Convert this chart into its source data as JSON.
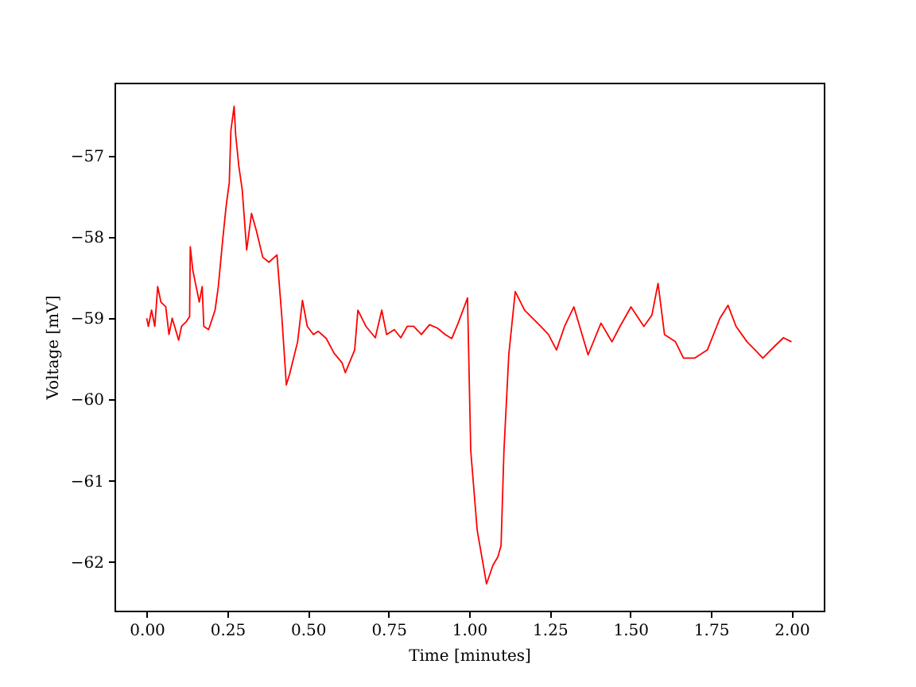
{
  "chart_data": {
    "type": "line",
    "xlabel": "Time [minutes]",
    "ylabel": "Voltage [mV]",
    "grid": false,
    "marker": "none",
    "line_style": "solid",
    "xlim": [
      -0.1,
      2.1
    ],
    "ylim": [
      -62.6,
      -56.1
    ],
    "xticks": [
      {
        "value": 0,
        "label": "0.00"
      },
      {
        "value": 0.25,
        "label": "0.25"
      },
      {
        "value": 0.5,
        "label": "0.50"
      },
      {
        "value": 0.75,
        "label": "0.75"
      },
      {
        "value": 1,
        "label": "1.00"
      },
      {
        "value": 1.25,
        "label": "1.25"
      },
      {
        "value": 1.5,
        "label": "1.50"
      },
      {
        "value": 1.75,
        "label": "1.75"
      },
      {
        "value": 2,
        "label": "2.00"
      }
    ],
    "yticks": [
      {
        "value": -62,
        "label": "−62"
      },
      {
        "value": -61,
        "label": "−61"
      },
      {
        "value": -60,
        "label": "−60"
      },
      {
        "value": -59,
        "label": "−59"
      },
      {
        "value": -58,
        "label": "−58"
      },
      {
        "value": -57,
        "label": "−57"
      }
    ],
    "series": [
      {
        "color": "#ff0000",
        "x": [
          0.0,
          0.005,
          0.015,
          0.025,
          0.034,
          0.044,
          0.059,
          0.069,
          0.079,
          0.099,
          0.108,
          0.123,
          0.133,
          0.135,
          0.143,
          0.163,
          0.172,
          0.177,
          0.192,
          0.212,
          0.222,
          0.236,
          0.246,
          0.256,
          0.261,
          0.271,
          0.276,
          0.286,
          0.296,
          0.31,
          0.325,
          0.34,
          0.36,
          0.379,
          0.404,
          0.419,
          0.433,
          0.443,
          0.468,
          0.483,
          0.498,
          0.517,
          0.532,
          0.557,
          0.581,
          0.606,
          0.616,
          0.645,
          0.655,
          0.68,
          0.709,
          0.729,
          0.744,
          0.768,
          0.788,
          0.808,
          0.828,
          0.852,
          0.877,
          0.901,
          0.926,
          0.946,
          0.966,
          0.995,
          1.005,
          1.025,
          1.054,
          1.074,
          1.089,
          1.099,
          1.108,
          1.123,
          1.143,
          1.172,
          1.222,
          1.246,
          1.271,
          1.296,
          1.325,
          1.369,
          1.409,
          1.443,
          1.468,
          1.502,
          1.542,
          1.567,
          1.586,
          1.606,
          1.64,
          1.665,
          1.7,
          1.739,
          1.778,
          1.803,
          1.828,
          1.862,
          1.887,
          1.911,
          1.946,
          1.975,
          2.0
        ],
        "values": [
          -59.0,
          -59.1,
          -58.9,
          -59.1,
          -58.61,
          -58.8,
          -58.86,
          -59.2,
          -59.0,
          -59.27,
          -59.1,
          -59.04,
          -58.98,
          -58.12,
          -58.41,
          -58.8,
          -58.61,
          -59.1,
          -59.14,
          -58.9,
          -58.61,
          -58.02,
          -57.63,
          -57.33,
          -56.69,
          -56.39,
          -56.75,
          -57.14,
          -57.41,
          -58.16,
          -57.71,
          -57.92,
          -58.25,
          -58.31,
          -58.22,
          -58.98,
          -59.82,
          -59.69,
          -59.29,
          -58.78,
          -59.1,
          -59.2,
          -59.16,
          -59.25,
          -59.43,
          -59.55,
          -59.67,
          -59.39,
          -58.9,
          -59.1,
          -59.24,
          -58.9,
          -59.2,
          -59.14,
          -59.24,
          -59.1,
          -59.1,
          -59.2,
          -59.08,
          -59.12,
          -59.2,
          -59.25,
          -59.06,
          -58.75,
          -60.63,
          -61.61,
          -62.27,
          -62.04,
          -61.94,
          -61.8,
          -60.63,
          -59.45,
          -58.67,
          -58.9,
          -59.1,
          -59.2,
          -59.39,
          -59.1,
          -58.86,
          -59.45,
          -59.06,
          -59.29,
          -59.1,
          -58.86,
          -59.1,
          -58.96,
          -58.57,
          -59.2,
          -59.29,
          -59.49,
          -59.49,
          -59.39,
          -59.0,
          -58.84,
          -59.1,
          -59.29,
          -59.39,
          -59.49,
          -59.35,
          -59.24,
          -59.29
        ]
      }
    ]
  }
}
